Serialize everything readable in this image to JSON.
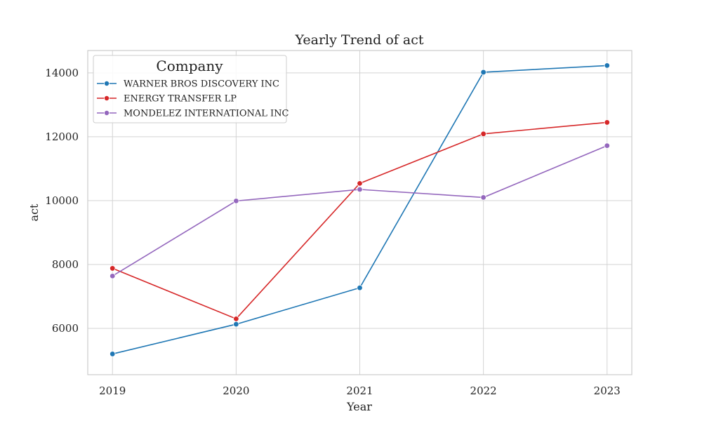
{
  "chart_data": {
    "type": "line",
    "title": "Yearly Trend of act",
    "xlabel": "Year",
    "ylabel": "act",
    "x": [
      "2019",
      "2020",
      "2021",
      "2022",
      "2023"
    ],
    "xlim": [
      2018.8,
      2023.2
    ],
    "ylim": [
      4550,
      14700
    ],
    "yticks": [
      6000,
      8000,
      10000,
      12000,
      14000
    ],
    "grid": true,
    "legend": {
      "title": "Company",
      "placement": "top-left"
    },
    "series": [
      {
        "name": "WARNER BROS DISCOVERY INC",
        "color": "#1f77b4",
        "values": [
          5200,
          6130,
          7270,
          14020,
          14230
        ]
      },
      {
        "name": "ENERGY TRANSFER LP",
        "color": "#d62728",
        "values": [
          7880,
          6300,
          10540,
          12090,
          12450
        ]
      },
      {
        "name": "MONDELEZ INTERNATIONAL INC",
        "color": "#9467bd",
        "values": [
          7640,
          9990,
          10350,
          10100,
          11720
        ]
      }
    ]
  }
}
